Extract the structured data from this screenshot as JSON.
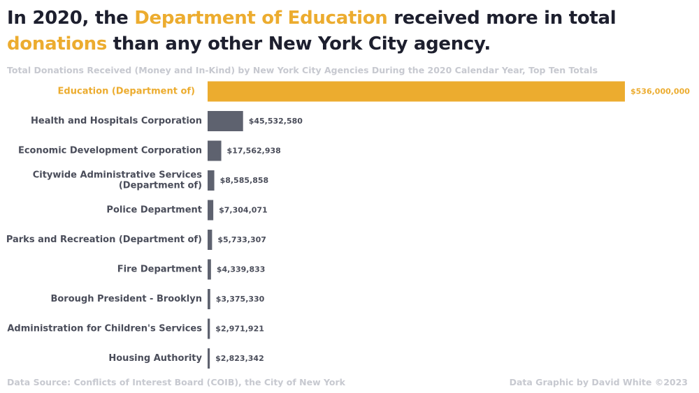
{
  "headline": {
    "part1": "In 2020, the ",
    "highlight1": "Department of Education",
    "part2": " received more in total ",
    "highlight2": "donations",
    "part3": " than any other New York City agency."
  },
  "colors": {
    "highlight": "#ecac2f",
    "bar": "#5e626f",
    "label": "#4a4d5a",
    "text_dark": "#1d1f2e",
    "muted": "#c7c9d0"
  },
  "chart_data": {
    "type": "bar",
    "orientation": "horizontal",
    "title": "Total Donations Received (Money and In-Kind) by New York City Agencies During the 2020 Calendar Year, Top Ten Totals",
    "categories": [
      "Education (Department of)",
      "Health and Hospitals Corporation",
      "Economic Development Corporation",
      "Citywide Administrative Services (Department of)",
      "Police Department",
      "Parks and Recreation (Department of)",
      "Fire Department",
      "Borough President - Brooklyn",
      "Administration for Children's Services",
      "Housing Authority"
    ],
    "category_lines": [
      [
        "Education (Department of)"
      ],
      [
        "Health and Hospitals Corporation"
      ],
      [
        "Economic Development Corporation"
      ],
      [
        "Citywide Administrative Services",
        "(Department of)"
      ],
      [
        "Police Department"
      ],
      [
        "Parks and Recreation (Department of)"
      ],
      [
        "Fire Department"
      ],
      [
        "Borough President - Brooklyn"
      ],
      [
        "Administration for Children's Services"
      ],
      [
        "Housing Authority"
      ]
    ],
    "values": [
      536000000,
      45532580,
      17562938,
      8585858,
      7304071,
      5733307,
      4339833,
      3375330,
      2971921,
      2823342
    ],
    "value_labels": [
      "$536,000,000",
      "$45,532,580",
      "$17,562,938",
      "$8,585,858",
      "$7,304,071",
      "$5,733,307",
      "$4,339,833",
      "$3,375,330",
      "$2,971,921",
      "$2,823,342"
    ],
    "highlight_index": 0,
    "xlim": [
      0,
      536000000
    ],
    "grid": false,
    "legend": "none"
  },
  "footer": {
    "source": "Data Source: Conflicts of Interest Board (COIB), the City of New York",
    "credit": "Data Graphic by David White ©2023"
  }
}
